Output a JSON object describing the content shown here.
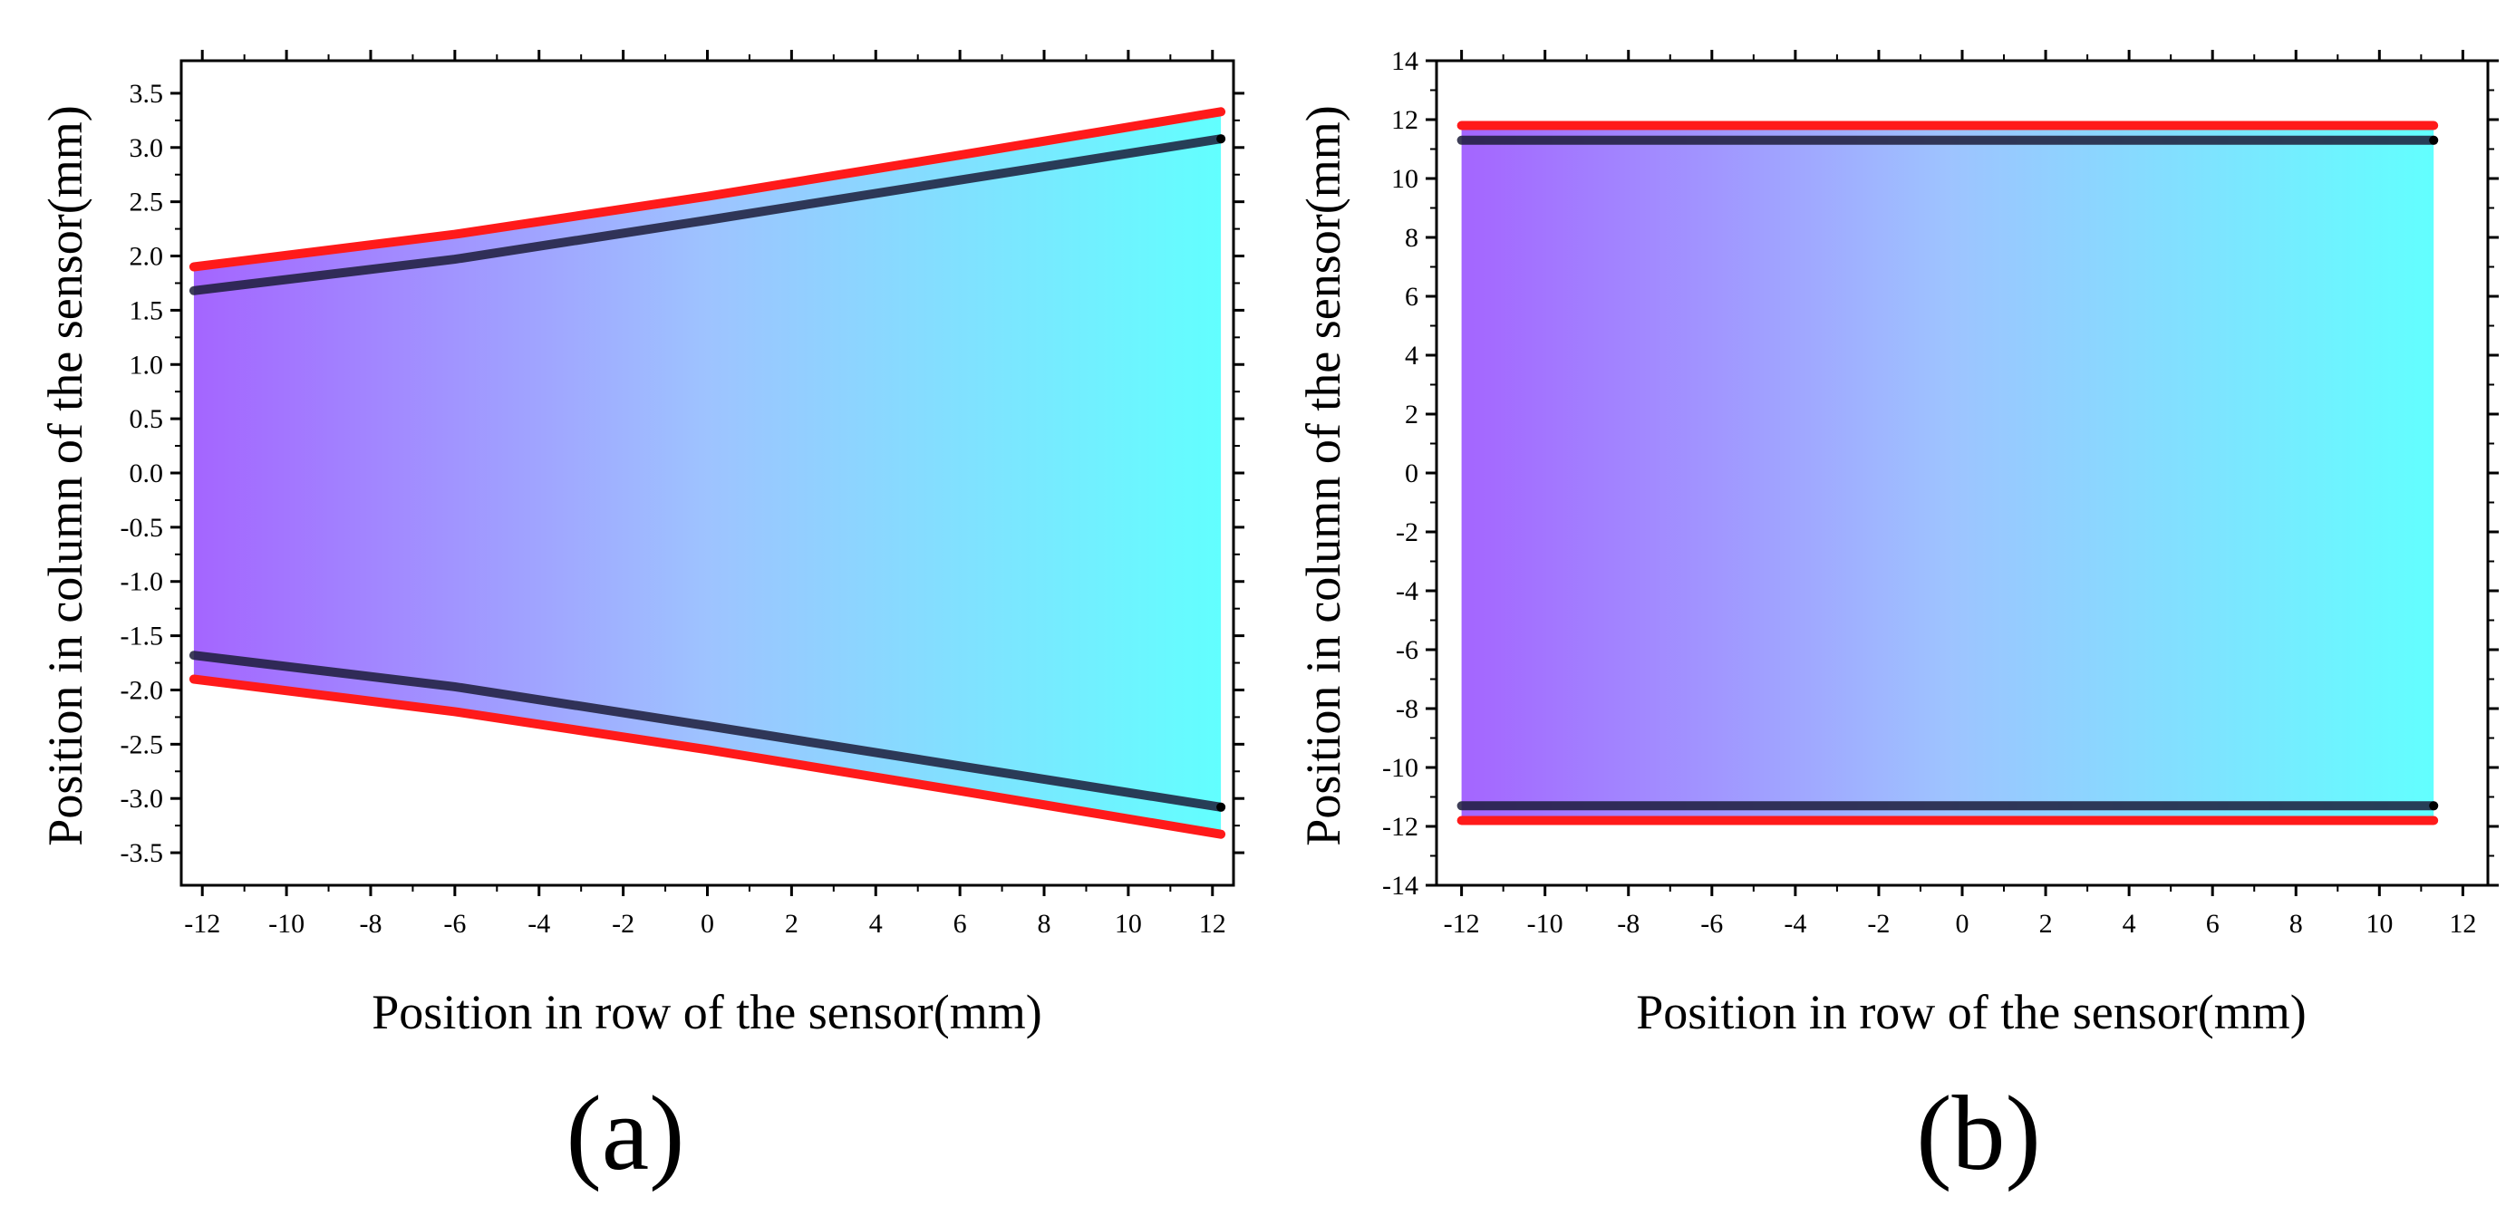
{
  "chart_data": [
    {
      "type": "area",
      "panel_label": "(a)",
      "xlabel": "Position in row of the sensor(mm)",
      "ylabel": "Position in column of the sensor(mm)",
      "xlim": [
        -12.5,
        12.5
      ],
      "ylim": [
        -3.8,
        3.8
      ],
      "xticks": [
        -12,
        -10,
        -8,
        -6,
        -4,
        -2,
        0,
        2,
        4,
        6,
        8,
        10,
        12
      ],
      "yticks": [
        3.5,
        3.0,
        2.5,
        2.0,
        1.5,
        1.0,
        0.5,
        0.0,
        -0.5,
        -1.0,
        -1.5,
        -2.0,
        -2.5,
        -3.0,
        -3.5
      ],
      "xtick_labels": [
        "-12",
        "-10",
        "-8",
        "-6",
        "-4",
        "-2",
        "0",
        "2",
        "4",
        "6",
        "8",
        "10",
        "12"
      ],
      "ytick_labels": [
        "3.5",
        "3.0",
        "2.5",
        "2.0",
        "1.5",
        "1.0",
        "0.5",
        "0.0",
        "-0.5",
        "-1.0",
        "-1.5",
        "-2.0",
        "-2.5",
        "-3.0",
        "-3.5"
      ],
      "fill_gradient": [
        "#a465ff",
        "#9ec3ff",
        "#62ffff"
      ],
      "series": [
        {
          "name": "outer upper boundary",
          "color": "#ff1a1a",
          "x": [
            -12.2,
            -6,
            0,
            6,
            12.2
          ],
          "y": [
            1.9,
            2.2,
            2.55,
            2.93,
            3.33
          ]
        },
        {
          "name": "inner upper boundary",
          "color": "#1c1c3a",
          "x": [
            -12.2,
            -6,
            0,
            6,
            12.2
          ],
          "y": [
            1.68,
            1.97,
            2.33,
            2.7,
            3.08
          ]
        },
        {
          "name": "inner lower boundary",
          "color": "#1c1c3a",
          "x": [
            -12.2,
            -6,
            0,
            6,
            12.2
          ],
          "y": [
            -1.68,
            -1.97,
            -2.33,
            -2.7,
            -3.08
          ]
        },
        {
          "name": "outer lower boundary",
          "color": "#ff1a1a",
          "x": [
            -12.2,
            -6,
            0,
            6,
            12.2
          ],
          "y": [
            -1.9,
            -2.2,
            -2.55,
            -2.93,
            -3.33
          ]
        }
      ]
    },
    {
      "type": "area",
      "panel_label": "(b)",
      "xlabel": "Position in row of the sensor(mm)",
      "ylabel": "Position in column of the sensor(mm)",
      "xlim": [
        -12.6,
        12.6
      ],
      "ylim": [
        -14,
        14
      ],
      "xticks": [
        -12,
        -10,
        -8,
        -6,
        -4,
        -2,
        0,
        2,
        4,
        6,
        8,
        10,
        12
      ],
      "yticks": [
        14,
        12,
        10,
        8,
        6,
        4,
        2,
        0,
        -2,
        -4,
        -6,
        -8,
        -10,
        -12,
        -14
      ],
      "xtick_labels": [
        "-12",
        "-10",
        "-8",
        "-6",
        "-4",
        "-2",
        "0",
        "2",
        "4",
        "6",
        "8",
        "10",
        "12"
      ],
      "ytick_labels": [
        "14",
        "12",
        "10",
        "8",
        "6",
        "4",
        "2",
        "0",
        "-2",
        "-4",
        "-6",
        "-8",
        "-10",
        "-12",
        "-14"
      ],
      "fill_gradient": [
        "#a465ff",
        "#9ec3ff",
        "#62ffff"
      ],
      "series": [
        {
          "name": "outer upper boundary",
          "color": "#ff1a1a",
          "x": [
            -12,
            11.3
          ],
          "y": [
            11.8,
            11.8
          ]
        },
        {
          "name": "inner upper boundary",
          "color": "#1c1c3a",
          "x": [
            -12,
            11.3
          ],
          "y": [
            11.3,
            11.3
          ]
        },
        {
          "name": "inner lower boundary",
          "color": "#1c1c3a",
          "x": [
            -12,
            11.3
          ],
          "y": [
            -11.3,
            -11.3
          ]
        },
        {
          "name": "outer lower boundary",
          "color": "#ff1a1a",
          "x": [
            -12,
            11.3
          ],
          "y": [
            -11.8,
            -11.8
          ]
        }
      ]
    }
  ]
}
